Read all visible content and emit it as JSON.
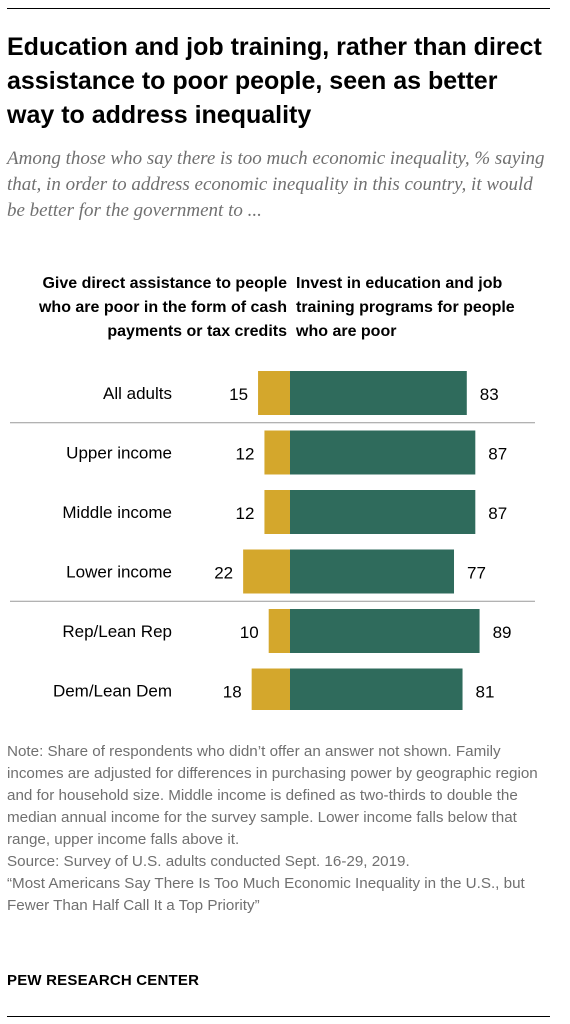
{
  "title": "Education and job training, rather than direct assistance to poor people, seen as better way to address inequality",
  "subtitle": "Among those who say there is too much economic inequality, % saying that, in order to address economic inequality in this country, it would be better for the government to ...",
  "chart_data": {
    "type": "bar",
    "orientation": "horizontal-diverging",
    "categories": [
      "All adults",
      "Upper income",
      "Middle income",
      "Lower income",
      "Rep/Lean Rep",
      "Dem/Lean Dem"
    ],
    "series": [
      {
        "name": "Give direct assistance to people who are poor in the form of cash payments or tax credits",
        "color": "#d4a72c",
        "values": [
          15,
          12,
          12,
          22,
          10,
          18
        ]
      },
      {
        "name": "Invest in education and job training programs for people who are poor",
        "color": "#2f6b5c",
        "values": [
          83,
          87,
          87,
          77,
          89,
          81
        ]
      }
    ],
    "group_breaks_after": [
      0,
      3
    ],
    "value_unit": "%"
  },
  "notes": {
    "note": "Note: Share of respondents who didn’t offer an answer not shown. Family incomes are adjusted for differences in purchasing power by geographic region and for household size. Middle income is defined as two-thirds to double the median annual income for the survey sample. Lower income falls below that range, upper income falls above it.",
    "source": "Source: Survey of U.S. adults conducted Sept. 16-29, 2019.",
    "report": "“Most Americans Say There Is Too Much Economic Inequality in the U.S., but Fewer Than Half Call It a Top Priority”"
  },
  "brand": "PEW RESEARCH CENTER"
}
